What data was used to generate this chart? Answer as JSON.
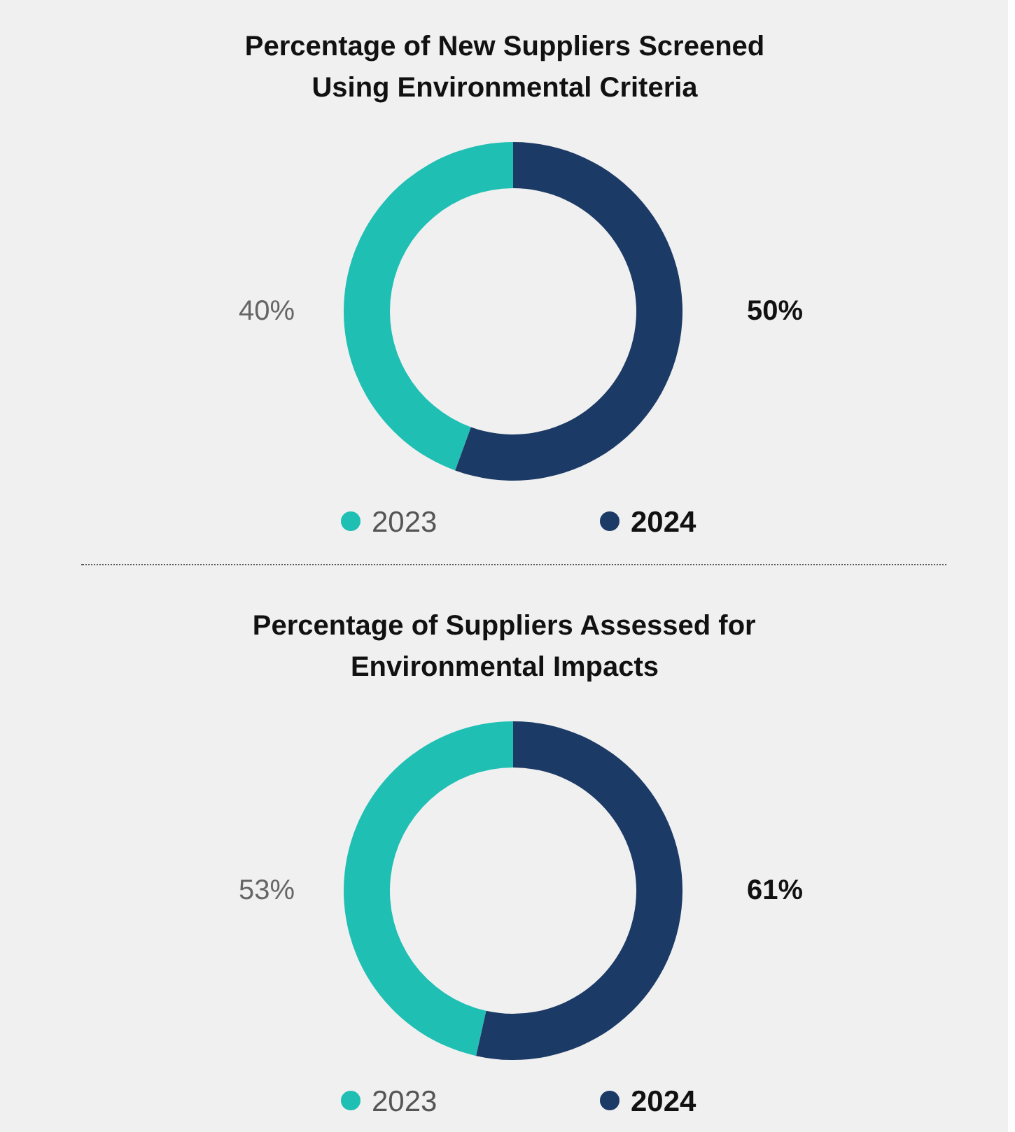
{
  "chart_data": [
    {
      "type": "donut",
      "title": "Percentage of New Suppliers Screened Using Environmental Criteria",
      "categories": [
        "2023",
        "2024"
      ],
      "values": [
        40,
        50
      ],
      "value_labels": [
        "40%",
        "50%"
      ],
      "colors": [
        "#1fbfb4",
        "#1c3a66"
      ],
      "legend": "bottom"
    },
    {
      "type": "donut",
      "title": "Percentage of Suppliers Assessed for Environmental Impacts",
      "categories": [
        "2023",
        "2024"
      ],
      "values": [
        53,
        61
      ],
      "value_labels": [
        "53%",
        "61%"
      ],
      "colors": [
        "#1fbfb4",
        "#1c3a66"
      ],
      "legend": "bottom"
    }
  ]
}
